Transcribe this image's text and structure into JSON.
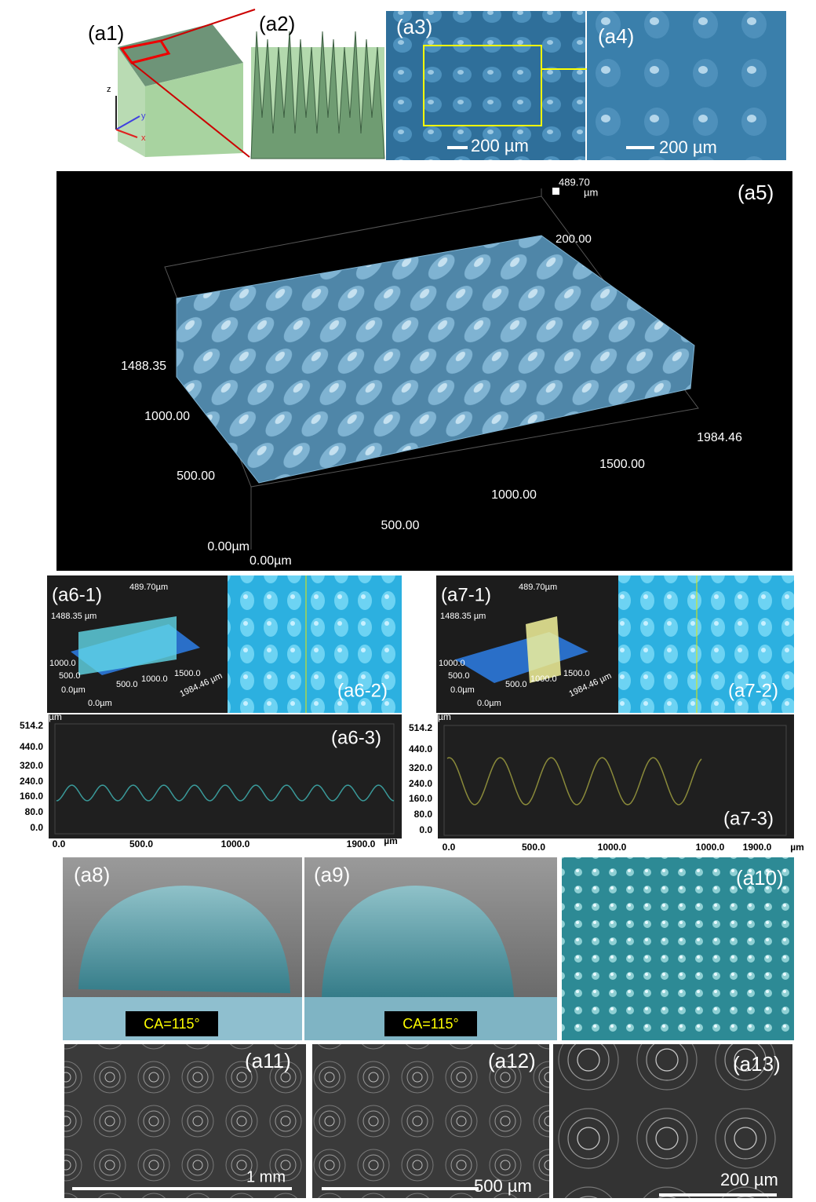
{
  "panels": {
    "a1": {
      "label": "(a1)",
      "axes": [
        "z",
        "y",
        "x"
      ]
    },
    "a2": {
      "label": "(a2)"
    },
    "a3": {
      "label": "(a3)",
      "scale_bar": "200 µm"
    },
    "a4": {
      "label": "(a4)",
      "scale_bar": "200 µm"
    },
    "a5": {
      "label": "(a5)",
      "height_max": "489.70",
      "height_unit": "µm",
      "z_tick": "200.00",
      "y_ticks": [
        "1488.35",
        "1000.00",
        "500.00",
        "0.00µm"
      ],
      "x_ticks": [
        "0.00µm",
        "500.00",
        "1000.00",
        "1500.00",
        "1984.46"
      ]
    },
    "a6": {
      "labels": [
        "(a6-1)",
        "(a6-2)",
        "(a6-3)"
      ],
      "inset": [
        "489.70µm",
        "1488.35 µm",
        "1000.0",
        "500.0",
        "0.0µm",
        "500.0",
        "1000.0",
        "1500.0",
        "0.0µm",
        "1984.46 µm"
      ],
      "unit": "µm",
      "yticks": [
        "514.2",
        "440.0",
        "320.0",
        "240.0",
        "160.0",
        "80.0",
        "0.0"
      ],
      "xticks": [
        "0.0",
        "500.0",
        "1000.0",
        "1900.0"
      ],
      "x_unit": "µm"
    },
    "a7": {
      "labels": [
        "(a7-1)",
        "(a7-2)",
        "(a7-3)"
      ],
      "inset": [
        "489.70µm",
        "1488.35 µm",
        "1000.0",
        "500.0",
        "0.0µm",
        "500.0",
        "1000.0",
        "1500.0",
        "0.0µm",
        "1984.46 µm"
      ],
      "unit": "µm",
      "yticks": [
        "514.2",
        "440.0",
        "320.0",
        "240.0",
        "160.0",
        "80.0",
        "0.0"
      ],
      "xticks": [
        "0.0",
        "500.0",
        "1000.0",
        "1000.0",
        "1900.0"
      ],
      "x_unit": "µm"
    },
    "a8": {
      "label": "(a8)",
      "contact_angle": "CA=115°"
    },
    "a9": {
      "label": "(a9)",
      "contact_angle": "CA=115°"
    },
    "a10": {
      "label": "(a10)"
    },
    "a11": {
      "label": "(a11)",
      "scale_bar": "1 mm"
    },
    "a12": {
      "label": "(a12)",
      "scale_bar": "500 µm"
    },
    "a13": {
      "label": "(a13)",
      "scale_bar": "200 µm"
    }
  }
}
